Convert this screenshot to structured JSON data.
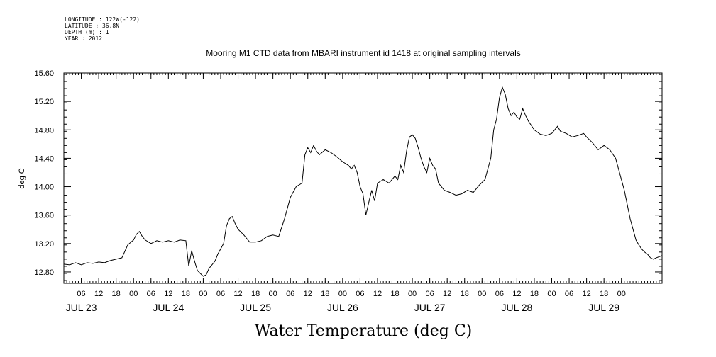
{
  "header": {
    "meta_lines": [
      "LONGITUDE : 122W(-122)",
      "LATITUDE : 36.8N",
      "DEPTH (m) : 1",
      "YEAR : 2012"
    ]
  },
  "chart_data": {
    "type": "line",
    "title": "Mooring M1 CTD data from MBARI instrument id 1418 at original sampling intervals",
    "xlabel": "Water Temperature (deg C)",
    "ylabel": "deg C",
    "ylim": [
      12.64,
      15.6
    ],
    "y_ticks": [
      "12.80",
      "13.20",
      "13.60",
      "14.00",
      "14.40",
      "14.80",
      "15.20",
      "15.60"
    ],
    "x_range_hours": [
      0,
      206
    ],
    "hour_tick_labels": [
      "06",
      "12",
      "18",
      "00",
      "06",
      "12",
      "18",
      "00",
      "06",
      "12",
      "18",
      "00",
      "06",
      "12",
      "18",
      "00",
      "06",
      "12",
      "18",
      "00",
      "06",
      "12",
      "18",
      "00",
      "06",
      "12",
      "18",
      "00",
      "06",
      "12",
      "18",
      "00"
    ],
    "day_labels": [
      "JUL 23",
      "JUL 24",
      "JUL 25",
      "JUL 26",
      "JUL 27",
      "JUL 28",
      "JUL 29"
    ],
    "grid": false,
    "series": [
      {
        "values": [
          [
            0,
            12.91
          ],
          [
            2,
            12.9
          ],
          [
            4,
            12.93
          ],
          [
            6,
            12.9
          ],
          [
            8,
            12.93
          ],
          [
            10,
            12.92
          ],
          [
            12,
            12.94
          ],
          [
            14,
            12.93
          ],
          [
            16,
            12.96
          ],
          [
            18,
            12.98
          ],
          [
            20,
            13.0
          ],
          [
            22,
            13.18
          ],
          [
            24,
            13.25
          ],
          [
            25,
            13.33
          ],
          [
            26,
            13.37
          ],
          [
            27,
            13.3
          ],
          [
            28,
            13.25
          ],
          [
            30,
            13.2
          ],
          [
            32,
            13.24
          ],
          [
            34,
            13.22
          ],
          [
            36,
            13.24
          ],
          [
            38,
            13.22
          ],
          [
            40,
            13.25
          ],
          [
            42,
            13.24
          ],
          [
            43,
            12.88
          ],
          [
            44,
            13.1
          ],
          [
            45,
            12.95
          ],
          [
            46,
            12.82
          ],
          [
            47,
            12.78
          ],
          [
            48,
            12.74
          ],
          [
            49,
            12.76
          ],
          [
            50,
            12.85
          ],
          [
            52,
            12.95
          ],
          [
            53,
            13.05
          ],
          [
            55,
            13.2
          ],
          [
            56,
            13.45
          ],
          [
            57,
            13.55
          ],
          [
            58,
            13.58
          ],
          [
            59,
            13.48
          ],
          [
            60,
            13.4
          ],
          [
            62,
            13.32
          ],
          [
            64,
            13.22
          ],
          [
            66,
            13.22
          ],
          [
            68,
            13.24
          ],
          [
            70,
            13.3
          ],
          [
            72,
            13.32
          ],
          [
            74,
            13.3
          ],
          [
            76,
            13.55
          ],
          [
            78,
            13.85
          ],
          [
            80,
            14.0
          ],
          [
            82,
            14.05
          ],
          [
            83,
            14.45
          ],
          [
            84,
            14.55
          ],
          [
            85,
            14.48
          ],
          [
            86,
            14.58
          ],
          [
            87,
            14.5
          ],
          [
            88,
            14.45
          ],
          [
            90,
            14.52
          ],
          [
            92,
            14.48
          ],
          [
            94,
            14.42
          ],
          [
            96,
            14.35
          ],
          [
            98,
            14.3
          ],
          [
            99,
            14.25
          ],
          [
            100,
            14.3
          ],
          [
            101,
            14.2
          ],
          [
            102,
            14.0
          ],
          [
            103,
            13.9
          ],
          [
            104,
            13.6
          ],
          [
            105,
            13.78
          ],
          [
            106,
            13.95
          ],
          [
            107,
            13.8
          ],
          [
            108,
            14.05
          ],
          [
            110,
            14.1
          ],
          [
            112,
            14.05
          ],
          [
            114,
            14.15
          ],
          [
            115,
            14.1
          ],
          [
            116,
            14.3
          ],
          [
            117,
            14.2
          ],
          [
            118,
            14.5
          ],
          [
            119,
            14.7
          ],
          [
            120,
            14.73
          ],
          [
            121,
            14.68
          ],
          [
            122,
            14.55
          ],
          [
            123,
            14.4
          ],
          [
            124,
            14.28
          ],
          [
            125,
            14.2
          ],
          [
            126,
            14.4
          ],
          [
            127,
            14.3
          ],
          [
            128,
            14.25
          ],
          [
            129,
            14.05
          ],
          [
            131,
            13.95
          ],
          [
            133,
            13.92
          ],
          [
            135,
            13.88
          ],
          [
            137,
            13.9
          ],
          [
            139,
            13.95
          ],
          [
            141,
            13.92
          ],
          [
            143,
            14.02
          ],
          [
            145,
            14.1
          ],
          [
            147,
            14.4
          ],
          [
            148,
            14.8
          ],
          [
            149,
            14.95
          ],
          [
            150,
            15.25
          ],
          [
            151,
            15.4
          ],
          [
            152,
            15.3
          ],
          [
            153,
            15.1
          ],
          [
            154,
            15.0
          ],
          [
            155,
            15.05
          ],
          [
            156,
            14.98
          ],
          [
            157,
            14.95
          ],
          [
            158,
            15.1
          ],
          [
            159,
            15.0
          ],
          [
            160,
            14.92
          ],
          [
            162,
            14.8
          ],
          [
            164,
            14.74
          ],
          [
            166,
            14.72
          ],
          [
            168,
            14.75
          ],
          [
            169,
            14.8
          ],
          [
            170,
            14.85
          ],
          [
            171,
            14.78
          ],
          [
            173,
            14.75
          ],
          [
            175,
            14.7
          ],
          [
            177,
            14.72
          ],
          [
            179,
            14.75
          ],
          [
            180,
            14.7
          ],
          [
            182,
            14.62
          ],
          [
            184,
            14.52
          ],
          [
            185,
            14.55
          ],
          [
            186,
            14.58
          ],
          [
            188,
            14.52
          ],
          [
            190,
            14.4
          ],
          [
            192,
            14.1
          ],
          [
            193,
            13.95
          ],
          [
            194,
            13.75
          ],
          [
            195,
            13.55
          ],
          [
            196,
            13.4
          ],
          [
            197,
            13.25
          ],
          [
            198,
            13.18
          ],
          [
            199,
            13.12
          ],
          [
            200,
            13.08
          ],
          [
            201,
            13.05
          ],
          [
            202,
            13.0
          ],
          [
            203,
            12.98
          ],
          [
            204,
            13.0
          ],
          [
            206,
            13.03
          ]
        ]
      }
    ]
  }
}
